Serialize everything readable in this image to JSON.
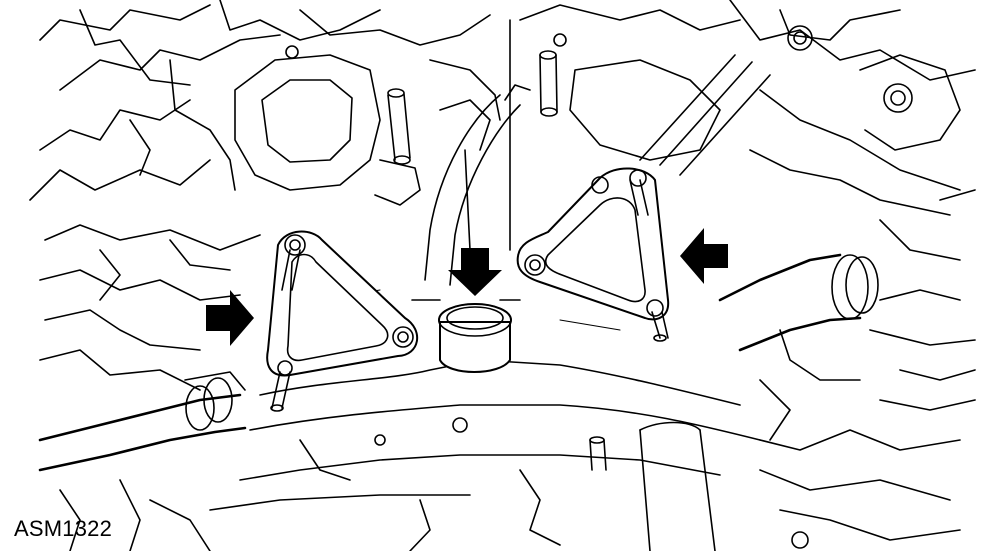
{
  "figure": {
    "id_label": "ASM1322",
    "arrows": [
      {
        "name": "left-gasket-arrow",
        "direction": "right"
      },
      {
        "name": "center-plug-arrow",
        "direction": "down"
      },
      {
        "name": "right-gasket-arrow",
        "direction": "left"
      }
    ],
    "components": [
      "left-gasket",
      "center-plug",
      "right-gasket"
    ],
    "colors": {
      "line": "#000000",
      "background": "#ffffff"
    }
  }
}
